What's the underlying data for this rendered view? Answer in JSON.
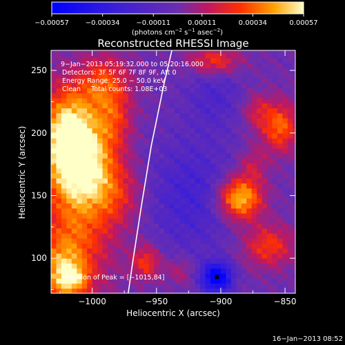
{
  "chart_data": {
    "type": "heatmap",
    "title": "Reconstructed RHESSI Image",
    "xlabel": "Heliocentric X (arcsec)",
    "ylabel": "Heliocentric Y (arcsec)",
    "xlim": [
      -1032,
      -842
    ],
    "ylim": [
      72,
      266
    ],
    "x_ticks": [
      -1000,
      -950,
      -900,
      -850
    ],
    "x_tick_labels": [
      "−1000",
      "−950",
      "−900",
      "−850"
    ],
    "y_ticks": [
      100,
      150,
      200,
      250
    ],
    "y_tick_labels": [
      "100",
      "150",
      "200",
      "250"
    ],
    "colorbar": {
      "range": [
        -0.00057,
        0.00057
      ],
      "tick_labels": [
        "−0.00057",
        "−0.00034",
        "−0.00011",
        "0.00011",
        "0.00034",
        "0.00057"
      ],
      "unit_parts": [
        "(photons cm",
        "−2",
        " s",
        "−1",
        " asec",
        "−2",
        ")"
      ]
    },
    "colors": {
      "low": "#0000ff",
      "mid": "#6a2eb0",
      "high": "#ff3000",
      "max": "#ffffc8"
    },
    "annotations": [
      "9−Jan−2013 05:19:32.000 to 05:20:16.000",
      "Detectors: 3F 5F 6F 7F 8F 9F, Att 0",
      "Energy Range: 25.0 − 50.0 keV",
      "Clean     Total counts: 1.08E+03"
    ],
    "peak_label": "Position of Peak = [−1015,84]",
    "peak": [
      -1015,
      84
    ],
    "limb_curve": [
      [
        -972,
        72
      ],
      [
        -968,
        100
      ],
      [
        -962,
        140
      ],
      [
        -954,
        190
      ],
      [
        -944,
        240
      ],
      [
        -938,
        266
      ]
    ],
    "sources": [
      {
        "x": -1018,
        "y": 200,
        "sx": 16,
        "sy": 26,
        "a": 1.6
      },
      {
        "x": -1005,
        "y": 172,
        "sx": 18,
        "sy": 22,
        "a": 1.0
      },
      {
        "x": -1012,
        "y": 120,
        "sx": 20,
        "sy": 40,
        "a": 0.85
      },
      {
        "x": -990,
        "y": 240,
        "sx": 14,
        "sy": 16,
        "a": 0.8
      },
      {
        "x": -983,
        "y": 210,
        "sx": 10,
        "sy": 16,
        "a": 0.6
      },
      {
        "x": -1025,
        "y": 90,
        "sx": 12,
        "sy": 18,
        "a": 0.8
      },
      {
        "x": -1015,
        "y": 84,
        "sx": 8,
        "sy": 8,
        "a": 0.7
      },
      {
        "x": -980,
        "y": 150,
        "sx": 14,
        "sy": 18,
        "a": 0.5
      },
      {
        "x": -885,
        "y": 148,
        "sx": 12,
        "sy": 12,
        "a": 1.5
      },
      {
        "x": -854,
        "y": 205,
        "sx": 10,
        "sy": 14,
        "a": 1.0
      },
      {
        "x": -872,
        "y": 218,
        "sx": 8,
        "sy": 10,
        "a": 0.5
      },
      {
        "x": -905,
        "y": 258,
        "sx": 14,
        "sy": 8,
        "a": 0.8
      },
      {
        "x": -863,
        "y": 110,
        "sx": 14,
        "sy": 12,
        "a": 0.8
      },
      {
        "x": -958,
        "y": 97,
        "sx": 8,
        "sy": 10,
        "a": 0.8
      },
      {
        "x": -932,
        "y": 90,
        "sx": 8,
        "sy": 8,
        "a": 0.4
      },
      {
        "x": -875,
        "y": 175,
        "sx": 8,
        "sy": 10,
        "a": 0.45
      },
      {
        "x": -903,
        "y": 85,
        "sx": 8,
        "sy": 8,
        "a": -1.6
      },
      {
        "x": -923,
        "y": 150,
        "sx": 26,
        "sy": 34,
        "a": -0.5
      },
      {
        "x": -905,
        "y": 230,
        "sx": 16,
        "sy": 18,
        "a": -0.35
      }
    ],
    "footer_date": "16−Jan−2013 08:52"
  }
}
